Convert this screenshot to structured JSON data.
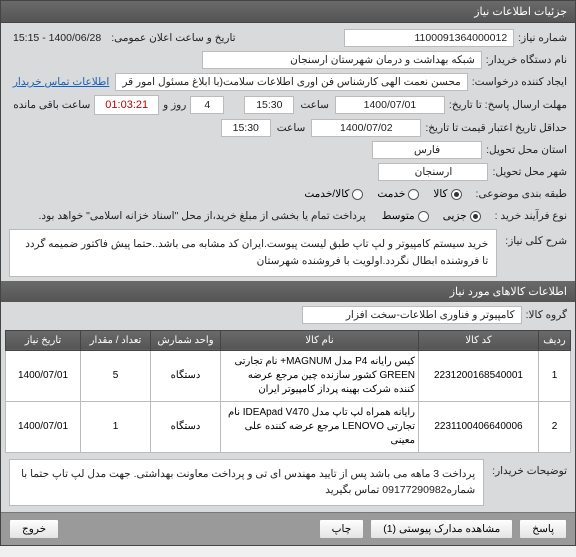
{
  "panel_title": "جزئیات اطلاعات نیاز",
  "fields": {
    "need_no_label": "شماره نیاز:",
    "need_no": "1100091364000012",
    "announce_label": "تاریخ و ساعت اعلان عمومی:",
    "announce_val": "1400/06/28 - 15:15",
    "buyer_label": "نام دستگاه خریدار:",
    "buyer": "شبکه بهداشت و درمان شهرستان ارسنجان",
    "creator_label": "ایجاد کننده درخواست:",
    "creator": "محسن نعمت الهی کارشناس فن اوری اطلاعات سلامت(با ابلاغ مسئول امور قر",
    "contact_link": "اطلاعات تماس خریدار",
    "deadline_label": "مهلت ارسال پاسخ: تا تاریخ:",
    "deadline_date": "1400/07/01",
    "time_lbl": "ساعت",
    "deadline_time": "15:30",
    "days_val": "4",
    "days_lbl": "روز و",
    "timer": "01:03:21",
    "remain_lbl": "ساعت باقی مانده",
    "validity_label": "حداقل تاریخ اعتبار قیمت تا تاریخ:",
    "validity_date": "1400/07/02",
    "validity_time": "15:30",
    "province_label": "استان محل تحویل:",
    "province": "فارس",
    "city_label": "شهر محل تحویل:",
    "city": "ارسنجان",
    "category_label": "طبقه بندی موضوعی:",
    "cat_goods": "کالا",
    "cat_service": "خدمت",
    "cat_both": "کالا/خدمت",
    "process_label": "نوع فرآیند خرید :",
    "proc_partial": "جزیی",
    "proc_medium": "متوسط",
    "process_note": "پرداخت تمام یا بخشی از مبلغ خرید،از محل \"اسناد خزانه اسلامی\" خواهد بود.",
    "summary_label": "شرح کلی نیاز:",
    "summary": "خرید سیستم کامپیوتر و لپ تاپ طبق لیست پیوست.ایران کد مشابه می باشد..حتما پیش فاکتور ضمیمه گردد تا فروشنده ابطال نگردد.اولویت با فروشنده شهرستان"
  },
  "section2": "اطلاعات کالاهای مورد نیاز",
  "group_label": "گروه کالا:",
  "group_val": "کامپیوتر و فناوری اطلاعات-سخت افزار",
  "table": {
    "headers": [
      "ردیف",
      "کد کالا",
      "نام کالا",
      "واحد شمارش",
      "تعداد / مقدار",
      "تاریخ نیاز"
    ],
    "rows": [
      [
        "1",
        "2231200168540001",
        "کیس رایانه P4 مدل MAGNUM+ نام تجارتی GREEN کشور سازنده چین مرجع عرضه کننده شرکت بهینه پرداز کامپیوتر ایران",
        "دستگاه",
        "5",
        "1400/07/01"
      ],
      [
        "2",
        "2231100406640006",
        "رایانه همراه لپ تاپ مدل IDEApad V470 نام تجارتی LENOVO مرجع عرضه کننده علی معینی",
        "دستگاه",
        "1",
        "1400/07/01"
      ]
    ]
  },
  "buyer_notes_label": "توضیحات خریدار:",
  "buyer_notes": "پرداخت 3 ماهه می باشد پس از تایید مهندس ای تی و پرداخت معاونت بهداشتی. جهت مدل لپ تاپ حتما با شماره09177290982 تماس بگیرید",
  "footer": {
    "answer": "پاسخ",
    "attachments": "مشاهده مدارک پیوستی (1)",
    "print": "چاپ",
    "close": "خروج"
  }
}
